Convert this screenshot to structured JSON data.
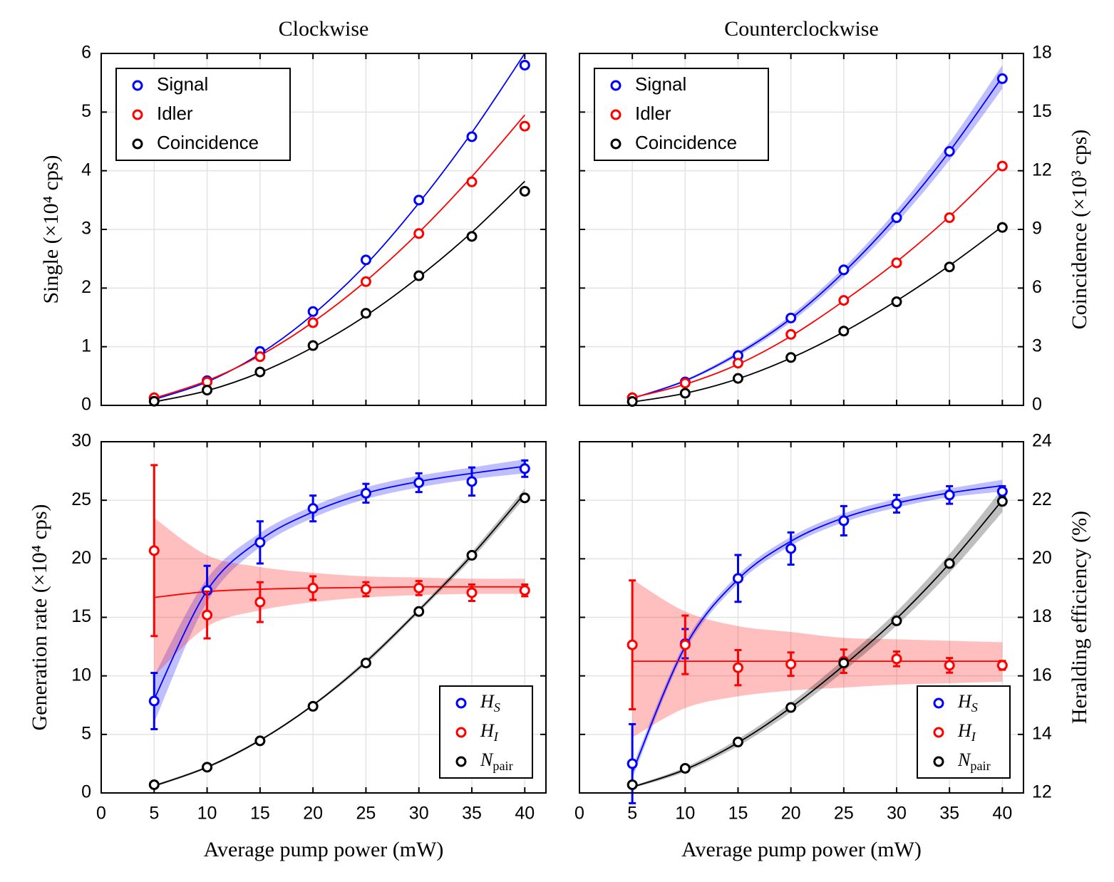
{
  "chart_data": [
    {
      "type": "scatter",
      "title": "Clockwise",
      "ylabel": "Single (×10⁴ cps)",
      "x": [
        5,
        10,
        15,
        20,
        25,
        30,
        35,
        40
      ],
      "xlim": [
        0,
        42
      ],
      "xticks": [
        0,
        5,
        10,
        15,
        20,
        25,
        30,
        35,
        40
      ],
      "xtick_labels": false,
      "ylim": [
        0,
        6
      ],
      "yticks": [
        0,
        1,
        2,
        3,
        4,
        5,
        6
      ],
      "ytick_labels": true,
      "grid": true,
      "legend": "upper left",
      "series": [
        {
          "name": "Signal",
          "color": "#0000ff",
          "values": [
            0.12,
            0.42,
            0.92,
            1.6,
            2.48,
            3.5,
            4.58,
            5.8
          ],
          "fit": [
            0.1,
            0.4,
            0.88,
            1.55,
            2.4,
            3.45,
            4.65,
            6.0
          ]
        },
        {
          "name": "Idler",
          "color": "#ff0000",
          "values": [
            0.13,
            0.4,
            0.83,
            1.41,
            2.11,
            2.93,
            3.81,
            4.76
          ],
          "fit": [
            0.12,
            0.42,
            0.85,
            1.42,
            2.12,
            2.95,
            3.9,
            4.95
          ]
        },
        {
          "name": "Coincidence",
          "color": "#000000",
          "values": [
            0.07,
            0.26,
            0.57,
            1.02,
            1.57,
            2.21,
            2.88,
            3.65
          ],
          "fit": [
            0.06,
            0.25,
            0.56,
            0.99,
            1.53,
            2.19,
            2.95,
            3.82
          ]
        }
      ]
    },
    {
      "type": "scatter",
      "title": "Counterclockwise",
      "y2label": "Coincidence (×10³ cps)",
      "x": [
        5,
        10,
        15,
        20,
        25,
        30,
        35,
        40
      ],
      "xlim": [
        0,
        42
      ],
      "xticks": [
        0,
        5,
        10,
        15,
        20,
        25,
        30,
        35,
        40
      ],
      "xtick_labels": false,
      "ylim": [
        0,
        6
      ],
      "yticks": [
        0,
        1,
        2,
        3,
        4,
        5,
        6
      ],
      "ytick_labels": false,
      "y2lim": [
        0,
        18
      ],
      "y2ticks": [
        0,
        3,
        6,
        9,
        12,
        15,
        18
      ],
      "grid": true,
      "legend": "upper left",
      "series": [
        {
          "name": "Signal",
          "color": "#0000ff",
          "values": [
            0.13,
            0.4,
            0.85,
            1.49,
            2.31,
            3.2,
            4.33,
            5.57
          ],
          "fit": [
            0.12,
            0.42,
            0.88,
            1.48,
            2.27,
            3.22,
            4.33,
            5.6
          ],
          "band_lo": [
            0.11,
            0.4,
            0.84,
            1.42,
            2.19,
            3.11,
            4.18,
            5.4
          ],
          "band_hi": [
            0.13,
            0.44,
            0.92,
            1.54,
            2.35,
            3.33,
            4.48,
            5.8
          ]
        },
        {
          "name": "Idler",
          "color": "#ff0000",
          "values": [
            0.13,
            0.38,
            0.72,
            1.21,
            1.79,
            2.43,
            3.2,
            4.08
          ],
          "fit": [
            0.13,
            0.36,
            0.7,
            1.18,
            1.78,
            2.45,
            3.22,
            4.1
          ]
        },
        {
          "name": "Coincidence",
          "color": "#000000",
          "axis": "y2",
          "values": [
            0.2,
            0.62,
            1.38,
            2.45,
            3.8,
            5.3,
            7.08,
            9.1
          ],
          "fit": [
            0.17,
            0.62,
            1.36,
            2.42,
            3.76,
            5.35,
            7.15,
            9.15
          ]
        }
      ]
    },
    {
      "type": "scatter",
      "ylabel": "Generation rate (×10⁴ cps)",
      "xlabel": "Average pump power (mW)",
      "x": [
        5,
        10,
        15,
        20,
        25,
        30,
        35,
        40
      ],
      "xlim": [
        0,
        42
      ],
      "xticks": [
        0,
        5,
        10,
        15,
        20,
        25,
        30,
        35,
        40
      ],
      "xtick_labels": true,
      "ylim": [
        0,
        30
      ],
      "yticks": [
        0,
        5,
        10,
        15,
        20,
        25,
        30
      ],
      "ytick_labels": true,
      "grid": true,
      "legend": "lower right",
      "series": [
        {
          "name": "H_S",
          "color": "#0000ff",
          "values": [
            7.85,
            17.3,
            21.4,
            24.3,
            25.6,
            26.5,
            26.6,
            27.7
          ],
          "errors": [
            2.4,
            2.1,
            1.8,
            1.1,
            0.8,
            0.8,
            1.2,
            0.7
          ],
          "fit": [
            8.0,
            17.3,
            21.6,
            24.0,
            25.6,
            26.6,
            27.3,
            27.9
          ],
          "band_lo": [
            6.0,
            16.3,
            21.0,
            23.5,
            25.1,
            26.1,
            26.8,
            27.3
          ],
          "band_hi": [
            10.0,
            18.3,
            22.2,
            24.5,
            26.1,
            27.1,
            27.8,
            28.5
          ]
        },
        {
          "name": "H_I",
          "color": "#ff0000",
          "values": [
            20.7,
            15.2,
            16.3,
            17.5,
            17.4,
            17.5,
            17.1,
            17.3
          ],
          "errors": [
            7.3,
            2.0,
            1.7,
            1.0,
            0.6,
            0.6,
            0.7,
            0.5
          ],
          "fit": [
            16.7,
            17.2,
            17.4,
            17.5,
            17.55,
            17.6,
            17.6,
            17.6
          ],
          "band_lo": [
            10.0,
            14.2,
            15.6,
            16.3,
            16.7,
            16.9,
            17.0,
            17.0
          ],
          "band_hi": [
            23.5,
            20.3,
            19.3,
            18.8,
            18.5,
            18.4,
            18.3,
            18.3
          ]
        },
        {
          "name": "N_pair",
          "color": "#000000",
          "values": [
            0.7,
            2.2,
            4.45,
            7.4,
            11.1,
            15.5,
            20.3,
            25.2
          ],
          "fit": [
            0.6,
            2.2,
            4.5,
            7.5,
            11.2,
            15.6,
            20.3,
            25.6
          ],
          "band_lo": [
            0.5,
            2.1,
            4.4,
            7.4,
            11.0,
            15.4,
            20.0,
            25.2
          ],
          "band_hi": [
            0.7,
            2.3,
            4.6,
            7.6,
            11.4,
            15.8,
            20.6,
            26.0
          ]
        }
      ]
    },
    {
      "type": "scatter",
      "y2label": "Heralding efficiency (%)",
      "xlabel": "Average pump power (mW)",
      "x": [
        5,
        10,
        15,
        20,
        25,
        30,
        35,
        40
      ],
      "xlim": [
        0,
        42
      ],
      "xticks": [
        0,
        5,
        10,
        15,
        20,
        25,
        30,
        35,
        40
      ],
      "xtick_labels": true,
      "ylim": [
        0,
        30
      ],
      "yticks": [
        0,
        5,
        10,
        15,
        20,
        25,
        30
      ],
      "ytick_labels": false,
      "y2lim": [
        12,
        24
      ],
      "y2ticks": [
        12,
        14,
        16,
        18,
        20,
        22,
        24
      ],
      "grid": true,
      "legend": "lower right",
      "series": [
        {
          "name": "H_S",
          "color": "#0000ff",
          "axis": "y2",
          "values": [
            13.0,
            17.1,
            19.33,
            20.35,
            21.3,
            21.88,
            22.18,
            22.3
          ],
          "errors": [
            1.35,
            0.5,
            0.8,
            0.55,
            0.5,
            0.3,
            0.3,
            0.18
          ],
          "fit": [
            12.7,
            17.0,
            19.3,
            20.6,
            21.4,
            21.9,
            22.25,
            22.5
          ],
          "band_lo": [
            12.5,
            16.85,
            19.15,
            20.45,
            21.25,
            21.75,
            22.1,
            22.3
          ],
          "band_hi": [
            12.9,
            17.15,
            19.45,
            20.75,
            21.55,
            22.05,
            22.4,
            22.7
          ]
        },
        {
          "name": "H_I",
          "color": "#ff0000",
          "axis": "y2",
          "values": [
            17.06,
            17.06,
            16.28,
            16.4,
            16.5,
            16.58,
            16.36,
            16.36
          ],
          "errors": [
            2.2,
            1.0,
            0.6,
            0.4,
            0.4,
            0.25,
            0.25,
            0.15
          ],
          "fit": [
            16.5,
            16.5,
            16.5,
            16.5,
            16.5,
            16.5,
            16.5,
            16.5
          ],
          "band_lo": [
            13.9,
            14.9,
            15.3,
            15.5,
            15.6,
            15.7,
            15.75,
            15.8
          ],
          "band_hi": [
            19.3,
            18.2,
            17.7,
            17.5,
            17.3,
            17.25,
            17.2,
            17.15
          ]
        },
        {
          "name": "N_pair",
          "color": "#000000",
          "values": [
            0.7,
            2.1,
            4.35,
            7.3,
            11.1,
            14.7,
            19.6,
            24.9
          ],
          "fit": [
            0.5,
            2.0,
            4.3,
            7.3,
            10.9,
            14.9,
            19.6,
            25.0
          ],
          "band_lo": [
            0.4,
            1.8,
            4.0,
            6.9,
            10.4,
            14.3,
            18.8,
            24.0
          ],
          "band_hi": [
            0.6,
            2.2,
            4.6,
            7.7,
            11.4,
            15.5,
            20.4,
            26.0
          ]
        }
      ]
    }
  ]
}
